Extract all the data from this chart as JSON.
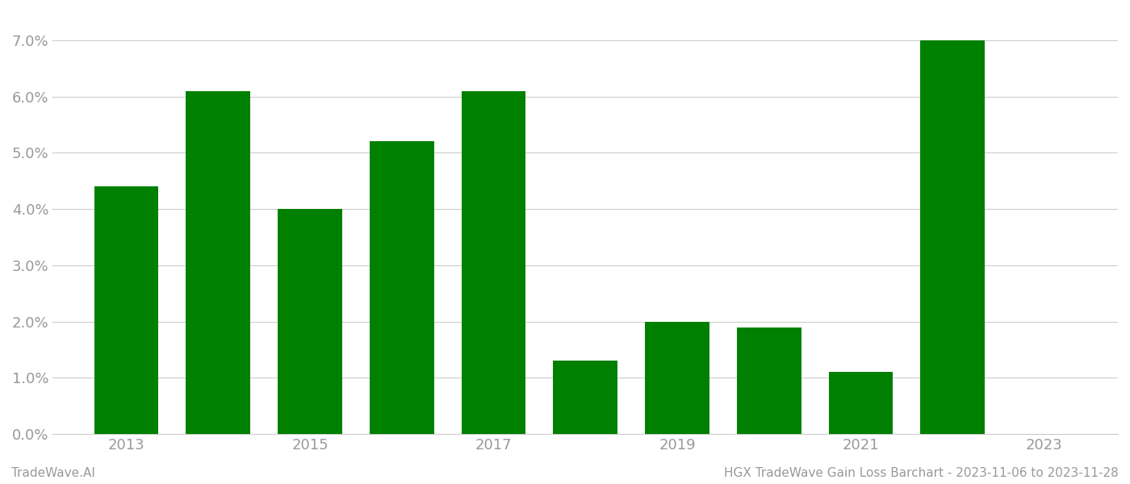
{
  "years": [
    2013,
    2014,
    2015,
    2016,
    2017,
    2018,
    2019,
    2020,
    2021,
    2022
  ],
  "values": [
    0.044,
    0.061,
    0.04,
    0.052,
    0.061,
    0.013,
    0.02,
    0.019,
    0.011,
    0.07
  ],
  "bar_color": "#008000",
  "background_color": "#ffffff",
  "footer_left": "TradeWave.AI",
  "footer_right": "HGX TradeWave Gain Loss Barchart - 2023-11-06 to 2023-11-28",
  "ylim": [
    0.0,
    0.075
  ],
  "yticks": [
    0.0,
    0.01,
    0.02,
    0.03,
    0.04,
    0.05,
    0.06,
    0.07
  ],
  "xlim": [
    2012.2,
    2023.8
  ],
  "xticks_labeled": [
    2013,
    2015,
    2017,
    2019,
    2021,
    2023
  ],
  "xtick_labels": [
    "2013",
    "2015",
    "2017",
    "2019",
    "2021",
    "2023"
  ],
  "xticks_all": [
    2013,
    2014,
    2015,
    2016,
    2017,
    2018,
    2019,
    2020,
    2021,
    2022,
    2023
  ],
  "grid_color": "#cccccc",
  "tick_label_color": "#999999",
  "footer_color": "#999999",
  "bar_width": 0.7,
  "tick_fontsize": 13,
  "footer_fontsize": 11
}
